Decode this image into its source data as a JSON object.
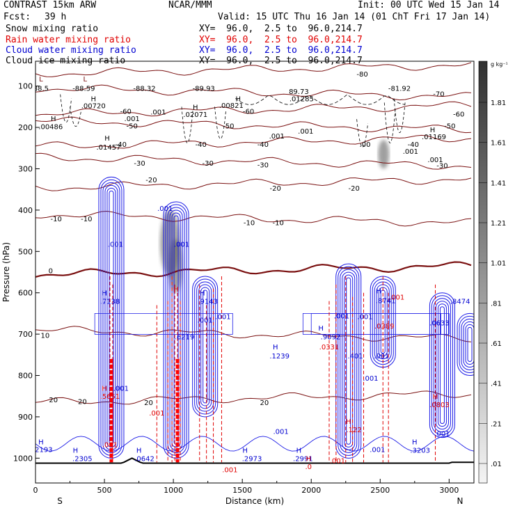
{
  "header": {
    "model": "CONTRAST 15km ARW",
    "org": "NCAR/MMM",
    "init": "Init: 00 UTC Wed 15 Jan 14",
    "fcst_label": "Fcst:",
    "fcst_value": "39 h",
    "valid": "Valid: 15 UTC Thu 16 Jan 14 (01 ChT Fri 17 Jan 14)",
    "fields": [
      {
        "name": "Snow mixing ratio",
        "xy": "XY=  96.0,  2.5 to  96.0,214.7",
        "color": "#000000"
      },
      {
        "name": "Rain water mixing ratio",
        "xy": "XY=  96.0,  2.5 to  96.0,214.7",
        "color": "#e00000"
      },
      {
        "name": "Cloud water mixing ratio",
        "xy": "XY=  96.0,  2.5 to  96.0,214.7",
        "color": "#0000d0"
      },
      {
        "name": "Cloud ice mixing ratio",
        "xy": "XY=  96.0,  2.5 to  96.0,214.7",
        "color": "#000000"
      }
    ]
  },
  "colorbar": {
    "unit": "g kg⁻¹",
    "labels": [
      "1.81",
      "1.61",
      "1.41",
      "1.21",
      "1.01",
      ".81",
      ".61",
      ".41",
      ".21",
      ".01"
    ]
  },
  "chart_data": {
    "type": "contour",
    "xlabel": "Distance (km)",
    "ylabel": "Pressure (hPa)",
    "xlim": [
      0,
      3180
    ],
    "ylim": [
      1060,
      40
    ],
    "xticks": [
      0,
      500,
      1000,
      1500,
      2000,
      2500,
      3000
    ],
    "xtick_labels": [
      "0",
      "500",
      "1000",
      "1500",
      "2000",
      "2500",
      "3000"
    ],
    "yticks": [
      100,
      200,
      300,
      400,
      500,
      600,
      700,
      800,
      900,
      1000
    ],
    "ytick_labels": [
      "100",
      "200",
      "300",
      "400",
      "500",
      "600",
      "700",
      "800",
      "900",
      "1000"
    ],
    "end_labels": {
      "left": "S",
      "right": "N"
    },
    "temperature_isotherms": [
      {
        "label": "-80",
        "p": 60
      },
      {
        "label": "-70",
        "p": 115
      },
      {
        "label": "-60",
        "p": 158
      },
      {
        "label": "-50",
        "p": 194
      },
      {
        "label": "-40",
        "p": 236
      },
      {
        "label": "-30",
        "p": 282
      },
      {
        "label": "-20",
        "p": 336
      },
      {
        "label": "-10",
        "p": 420
      },
      {
        "label": "0",
        "p": 546
      },
      {
        "label": "10",
        "p": 700
      },
      {
        "label": "20",
        "p": 855
      }
    ],
    "isotherm_labels": [
      {
        "text": "-80",
        "x": 2370,
        "p": 70
      },
      {
        "text": "-70",
        "x": 2925,
        "p": 118
      },
      {
        "text": "-60",
        "x": 655,
        "p": 160
      },
      {
        "text": "-60",
        "x": 1545,
        "p": 160
      },
      {
        "text": "-60",
        "x": 3070,
        "p": 167
      },
      {
        "text": "-50",
        "x": 700,
        "p": 196
      },
      {
        "text": "-50",
        "x": 1400,
        "p": 196
      },
      {
        "text": "-50",
        "x": 3005,
        "p": 196
      },
      {
        "text": "-40",
        "x": 620,
        "p": 240
      },
      {
        "text": "-40",
        "x": 1200,
        "p": 240
      },
      {
        "text": "-40",
        "x": 1650,
        "p": 240
      },
      {
        "text": "-40",
        "x": 2740,
        "p": 240
      },
      {
        "text": "-30",
        "x": 755,
        "p": 286
      },
      {
        "text": "-30",
        "x": 1250,
        "p": 286
      },
      {
        "text": "-30",
        "x": 1650,
        "p": 290
      },
      {
        "text": "-30",
        "x": 2950,
        "p": 292
      },
      {
        "text": "-20",
        "x": 840,
        "p": 326
      },
      {
        "text": "-20",
        "x": 1740,
        "p": 346
      },
      {
        "text": "-20",
        "x": 2310,
        "p": 346
      },
      {
        "text": "-10",
        "x": 150,
        "p": 420
      },
      {
        "text": "-10",
        "x": 370,
        "p": 420
      },
      {
        "text": "-10",
        "x": 1550,
        "p": 430
      },
      {
        "text": "-10",
        "x": 1760,
        "p": 430
      },
      {
        "text": "0",
        "x": 110,
        "p": 546
      },
      {
        "text": "10",
        "x": 70,
        "p": 702
      },
      {
        "text": "20",
        "x": 130,
        "p": 858
      },
      {
        "text": "20",
        "x": 340,
        "p": 862
      },
      {
        "text": "20",
        "x": 820,
        "p": 865
      },
      {
        "text": "20",
        "x": 1660,
        "p": 865
      }
    ],
    "extrema_labels": [
      {
        "text": "L",
        "x": 40,
        "p": 82,
        "color": "#7a1010"
      },
      {
        "text": "88.5",
        "x": 40,
        "p": 105,
        "color": "#000000"
      },
      {
        "text": "L",
        "x": 360,
        "p": 82,
        "color": "#7a1010"
      },
      {
        "text": "-88.59",
        "x": 350,
        "p": 105,
        "color": "#000000"
      },
      {
        "text": "-88.32",
        "x": 790,
        "p": 105,
        "color": "#000000"
      },
      {
        "text": "-89.93",
        "x": 1220,
        "p": 105,
        "color": "#000000"
      },
      {
        "text": "89.73",
        "x": 1910,
        "p": 112,
        "color": "#000000"
      },
      {
        "text": "-81.92",
        "x": 2640,
        "p": 105,
        "color": "#000000"
      },
      {
        "text": "H",
        "x": 420,
        "p": 130,
        "color": "#000000"
      },
      {
        "text": ".00720",
        "x": 420,
        "p": 147,
        "color": "#000000"
      },
      {
        "text": "H",
        "x": 1470,
        "p": 130,
        "color": "#000000"
      },
      {
        "text": ".00821",
        "x": 1420,
        "p": 146,
        "color": "#000000"
      },
      {
        "text": ".01285",
        "x": 1930,
        "p": 130,
        "color": "#000000"
      },
      {
        "text": "H",
        "x": 1160,
        "p": 150,
        "color": "#000000"
      },
      {
        "text": ".02071",
        "x": 1160,
        "p": 168,
        "color": "#000000"
      },
      {
        "text": "H",
        "x": 130,
        "p": 178,
        "color": "#000000"
      },
      {
        "text": ".00486",
        "x": 110,
        "p": 197,
        "color": "#000000"
      },
      {
        "text": "H",
        "x": 520,
        "p": 225,
        "color": "#000000"
      },
      {
        "text": ".01457",
        "x": 530,
        "p": 247,
        "color": "#000000"
      },
      {
        "text": "H",
        "x": 2880,
        "p": 205,
        "color": "#000000"
      },
      {
        "text": ".01169",
        "x": 2890,
        "p": 222,
        "color": "#000000"
      },
      {
        "text": ".001",
        "x": 700,
        "p": 178,
        "color": "#000000"
      },
      {
        "text": ".001",
        "x": 890,
        "p": 162,
        "color": "#000000"
      },
      {
        "text": ".001",
        "x": 1750,
        "p": 220,
        "color": "#000000"
      },
      {
        "text": ".001",
        "x": 1960,
        "p": 208,
        "color": "#000000"
      },
      {
        "text": ".00",
        "x": 2390,
        "p": 240,
        "color": "#000000"
      },
      {
        "text": ".001",
        "x": 2720,
        "p": 257,
        "color": "#000000"
      },
      {
        "text": ".001",
        "x": 2900,
        "p": 277,
        "color": "#000000"
      },
      {
        "text": ".001",
        "x": 940,
        "p": 395,
        "color": "#0000d0"
      },
      {
        "text": ".001",
        "x": 580,
        "p": 482,
        "color": "#0000d0"
      },
      {
        "text": ".001",
        "x": 1060,
        "p": 482,
        "color": "#0000d0"
      },
      {
        "text": "H",
        "x": 500,
        "p": 600,
        "color": "#0000d0"
      },
      {
        "text": ".7138",
        "x": 540,
        "p": 620,
        "color": "#0000d0"
      },
      {
        "text": "H",
        "x": 1210,
        "p": 600,
        "color": "#0000d0"
      },
      {
        "text": ".9143",
        "x": 1250,
        "p": 620,
        "color": "#0000d0"
      },
      {
        "text": ".001",
        "x": 1230,
        "p": 665,
        "color": "#0000d0"
      },
      {
        "text": ".6219",
        "x": 1080,
        "p": 706,
        "color": "#0000d0"
      },
      {
        "text": ".001",
        "x": 1360,
        "p": 657,
        "color": "#0000d0"
      },
      {
        "text": "H",
        "x": 2070,
        "p": 685,
        "color": "#0000d0"
      },
      {
        "text": ".9092",
        "x": 2140,
        "p": 706,
        "color": "#0000d0"
      },
      {
        "text": ".001",
        "x": 2220,
        "p": 655,
        "color": "#0000d0"
      },
      {
        "text": ".001",
        "x": 2390,
        "p": 657,
        "color": "#0000d0"
      },
      {
        "text": "H",
        "x": 2490,
        "p": 595,
        "color": "#0000d0"
      },
      {
        "text": ".8741",
        "x": 2540,
        "p": 618,
        "color": "#0000d0"
      },
      {
        "text": ".401",
        "x": 2320,
        "p": 752,
        "color": "#0000d0"
      },
      {
        "text": ".001",
        "x": 2510,
        "p": 752,
        "color": "#0000d0"
      },
      {
        "text": ".001",
        "x": 2430,
        "p": 806,
        "color": "#0000d0"
      },
      {
        "text": "H",
        "x": 1740,
        "p": 730,
        "color": "#0000d0"
      },
      {
        "text": ".1239",
        "x": 1770,
        "p": 752,
        "color": "#0000d0"
      },
      {
        "text": ".0633",
        "x": 2930,
        "p": 672,
        "color": "#0000d0"
      },
      {
        "text": ".8474",
        "x": 3080,
        "p": 620,
        "color": "#0000d0"
      },
      {
        "text": ".001",
        "x": 620,
        "p": 830,
        "color": "#0000d0"
      },
      {
        "text": ".001",
        "x": 1780,
        "p": 935,
        "color": "#0000d0"
      },
      {
        "text": ".001",
        "x": 2480,
        "p": 978,
        "color": "#0000d0"
      },
      {
        "text": ".001",
        "x": 2950,
        "p": 940,
        "color": "#0000d0"
      },
      {
        "text": "H",
        "x": 40,
        "p": 960,
        "color": "#0000d0"
      },
      {
        "text": "2193",
        "x": 60,
        "p": 978,
        "color": "#0000d0"
      },
      {
        "text": "H",
        "x": 290,
        "p": 980,
        "color": "#0000d0"
      },
      {
        "text": ".2305",
        "x": 340,
        "p": 1000,
        "color": "#0000d0"
      },
      {
        "text": "H",
        "x": 750,
        "p": 980,
        "color": "#0000d0"
      },
      {
        "text": ".0642",
        "x": 790,
        "p": 1000,
        "color": "#0000d0"
      },
      {
        "text": "H",
        "x": 1520,
        "p": 980,
        "color": "#0000d0"
      },
      {
        "text": ".2973",
        "x": 1570,
        "p": 1000,
        "color": "#0000d0"
      },
      {
        "text": "H",
        "x": 1910,
        "p": 980,
        "color": "#0000d0"
      },
      {
        "text": ".2991",
        "x": 1940,
        "p": 1000,
        "color": "#0000d0"
      },
      {
        "text": "H",
        "x": 2750,
        "p": 960,
        "color": "#0000d0"
      },
      {
        "text": ".3203",
        "x": 2790,
        "p": 980,
        "color": "#0000d0"
      },
      {
        "text": "H",
        "x": 500,
        "p": 830,
        "color": "#e00000"
      },
      {
        "text": ".5651",
        "x": 540,
        "p": 850,
        "color": "#e00000"
      },
      {
        "text": ".001",
        "x": 880,
        "p": 890,
        "color": "#e00000"
      },
      {
        "text": ".001",
        "x": 540,
        "p": 967,
        "color": "#e00000"
      },
      {
        "text": "H",
        "x": 1020,
        "p": 590,
        "color": "#e00000"
      },
      {
        "text": ".0331",
        "x": 2130,
        "p": 730,
        "color": "#e00000"
      },
      {
        "text": ".0389",
        "x": 2530,
        "p": 680,
        "color": "#e00000"
      },
      {
        "text": "H",
        "x": 2900,
        "p": 850,
        "color": "#e00000"
      },
      {
        "text": ".0803",
        "x": 2930,
        "p": 870,
        "color": "#e00000"
      },
      {
        "text": ".001",
        "x": 2620,
        "p": 610,
        "color": "#e00000"
      },
      {
        "text": "H",
        "x": 2270,
        "p": 910,
        "color": "#e00000"
      },
      {
        "text": ".122",
        "x": 2310,
        "p": 930,
        "color": "#e00000"
      },
      {
        "text": "H",
        "x": 1980,
        "p": 1000,
        "color": "#e00000"
      },
      {
        "text": ".0",
        "x": 1980,
        "p": 1020,
        "color": "#e00000"
      },
      {
        "text": ".001",
        "x": 2190,
        "p": 1005,
        "color": "#e00000"
      },
      {
        "text": ".001",
        "x": 1410,
        "p": 1027,
        "color": "#e00000"
      }
    ]
  }
}
